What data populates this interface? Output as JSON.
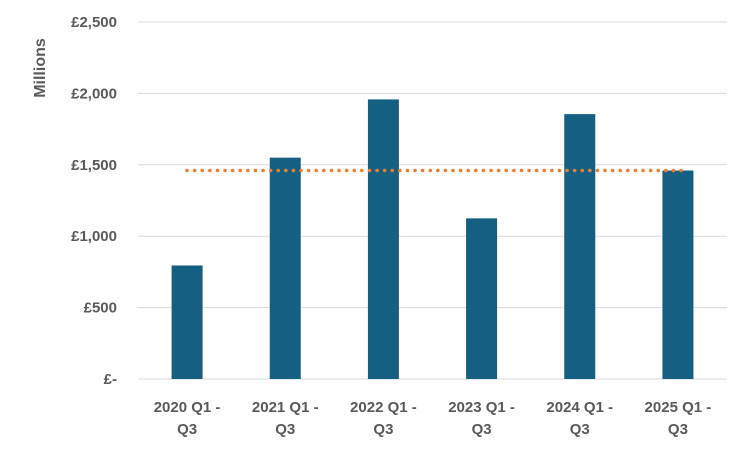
{
  "chart_data": {
    "type": "bar",
    "title": "",
    "xlabel": "",
    "ylabel": "Millions",
    "categories": [
      [
        "2020 Q1 -",
        "Q3"
      ],
      [
        "2021 Q1 -",
        "Q3"
      ],
      [
        "2022 Q1 -",
        "Q3"
      ],
      [
        "2023 Q1 -",
        "Q3"
      ],
      [
        "2024 Q1 -",
        "Q3"
      ],
      [
        "2025 Q1 -",
        "Q3"
      ]
    ],
    "values": [
      795,
      1550,
      1958,
      1125,
      1855,
      1460
    ],
    "reference_line": {
      "value": 1460,
      "style": "dotted",
      "color": "#ED7D31"
    },
    "ylim": [
      0,
      2500
    ],
    "yticks": [
      0,
      500,
      1000,
      1500,
      2000,
      2500
    ],
    "ytick_labels": [
      "£-",
      "£500",
      "£1,000",
      "£1,500",
      "£2,000",
      "£2,500"
    ],
    "grid": true,
    "legend": "none",
    "colors": {
      "bar": "#156082",
      "grid": "#D9D9D9",
      "text": "#595959",
      "reference": "#ED7D31"
    }
  }
}
